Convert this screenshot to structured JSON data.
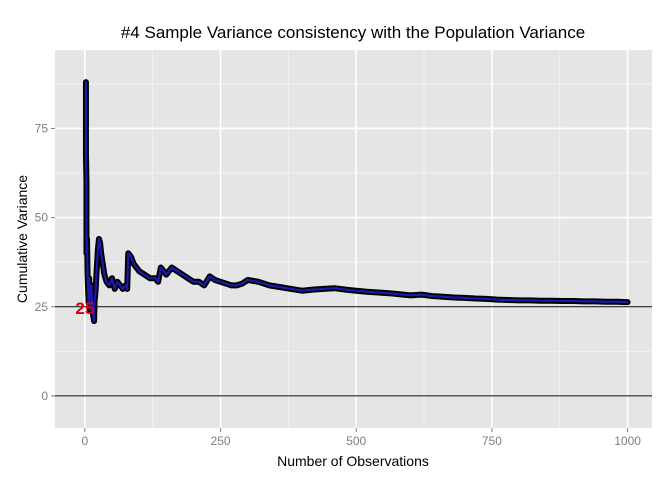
{
  "chart_data": {
    "type": "line",
    "title": "#4 Sample Variance consistency with the Population Variance",
    "xlabel": "Number of Observations",
    "ylabel": "Cumulative Variance",
    "xlim": [
      -55,
      1045
    ],
    "ylim": [
      -9,
      97
    ],
    "x_ticks": [
      0,
      250,
      500,
      750,
      1000
    ],
    "y_ticks": [
      0,
      25,
      50,
      75
    ],
    "x_tick_labels": [
      "0",
      "250",
      "500",
      "750",
      "1000"
    ],
    "y_tick_labels": [
      "0",
      "25",
      "50",
      "75"
    ],
    "grid": true,
    "legend": "none",
    "colors": {
      "panel_background": "#e5e5e5",
      "grid_major": "#ffffff",
      "grid_minor": "#f2f2f2",
      "line_outline": "#000000",
      "line_fill": "#1a1aa8",
      "reference_line": "#000000",
      "annotation": "#e00000"
    },
    "reference_lines": [
      {
        "orientation": "horizontal",
        "y": 25
      },
      {
        "orientation": "horizontal",
        "y": 0
      }
    ],
    "annotation": {
      "text": "25",
      "x": 0,
      "y": 25
    },
    "series": [
      {
        "x": [
          2,
          2,
          3,
          3,
          4,
          5,
          6,
          7,
          8,
          9,
          10,
          11,
          12,
          13,
          14,
          15,
          16,
          17,
          18,
          19,
          20,
          22,
          24,
          26,
          28,
          30,
          33,
          36,
          40,
          45,
          50,
          55,
          60,
          65,
          70,
          75,
          78,
          80,
          85,
          90,
          100,
          110,
          120,
          130,
          135,
          140,
          145,
          150,
          160,
          170,
          180,
          190,
          200,
          210,
          220,
          230,
          235,
          240,
          250,
          260,
          270,
          280,
          290,
          300,
          320,
          340,
          360,
          380,
          400,
          420,
          440,
          460,
          480,
          500,
          520,
          540,
          560,
          580,
          600,
          620,
          640,
          660,
          680,
          700,
          720,
          740,
          760,
          780,
          800,
          820,
          840,
          860,
          880,
          900,
          920,
          940,
          960,
          980,
          1000
        ],
        "y": [
          88,
          68,
          60,
          40,
          44,
          34,
          30,
          26,
          33,
          24,
          30,
          28,
          31,
          27,
          25,
          23,
          22,
          21,
          27,
          28,
          30,
          36,
          41,
          44,
          43,
          40,
          37,
          34,
          32,
          31,
          33,
          30,
          32,
          31,
          30,
          31,
          30,
          40,
          39,
          37,
          35,
          34,
          33,
          33,
          32,
          36,
          35,
          34,
          36,
          35,
          34,
          33,
          32,
          32,
          31,
          33.5,
          33,
          32.5,
          32,
          31.5,
          31,
          31,
          31.5,
          32.5,
          32,
          31,
          30.5,
          30,
          29.5,
          29.8,
          30,
          30.2,
          29.8,
          29.5,
          29.2,
          29,
          28.8,
          28.5,
          28.2,
          28.4,
          28,
          27.8,
          27.6,
          27.5,
          27.3,
          27.2,
          27,
          26.9,
          26.8,
          26.8,
          26.7,
          26.7,
          26.6,
          26.6,
          26.5,
          26.5,
          26.4,
          26.4,
          26.3
        ]
      }
    ]
  }
}
